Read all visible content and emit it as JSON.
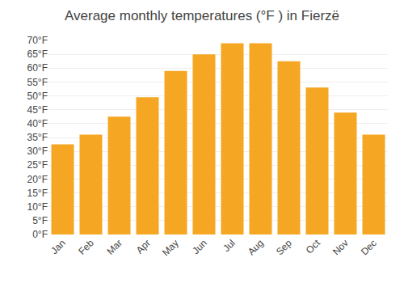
{
  "chart_data": {
    "type": "bar",
    "title": "Average monthly temperatures (°F ) in Fierzë",
    "categories": [
      "Jan",
      "Feb",
      "Mar",
      "Apr",
      "May",
      "Jun",
      "Jul",
      "Aug",
      "Sep",
      "Oct",
      "Nov",
      "Dec"
    ],
    "values": [
      32.5,
      36.0,
      42.5,
      49.5,
      59.0,
      65.0,
      69.0,
      69.0,
      62.5,
      53.0,
      44.0,
      36.0
    ],
    "color": "#F5A623",
    "ylim": [
      0,
      70
    ],
    "yticks": [
      {
        "value": 0,
        "label": "0°F"
      },
      {
        "value": 5,
        "label": "5°F"
      },
      {
        "value": 10,
        "label": "10°F"
      },
      {
        "value": 15,
        "label": "15°F"
      },
      {
        "value": 20,
        "label": "20°F"
      },
      {
        "value": 25,
        "label": "25°F"
      },
      {
        "value": 30,
        "label": "30°F"
      },
      {
        "value": 35,
        "label": "35°F"
      },
      {
        "value": 40,
        "label": "40°F"
      },
      {
        "value": 45,
        "label": "45°F"
      },
      {
        "value": 50,
        "label": "50°F"
      },
      {
        "value": 55,
        "label": "55°F"
      },
      {
        "value": 60,
        "label": "60°F"
      },
      {
        "value": 65,
        "label": "65°F"
      },
      {
        "value": 70,
        "label": "70°F"
      }
    ],
    "grid": true
  }
}
